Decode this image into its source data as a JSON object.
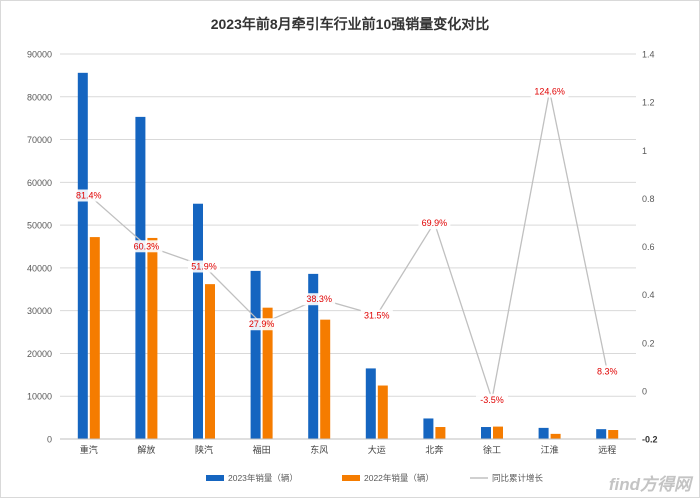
{
  "chart_data": {
    "type": "bar",
    "title": "2023年前8月牵引车行业前10强销量变化对比",
    "categories": [
      "重汽",
      "解放",
      "陕汽",
      "福田",
      "东风",
      "大运",
      "北奔",
      "徐工",
      "江淮",
      "远程"
    ],
    "series": [
      {
        "name": "2023年销量（辆）",
        "type": "bar",
        "axis": "left",
        "color": "#1565c0",
        "values": [
          85600,
          75300,
          55000,
          39300,
          38600,
          16500,
          4800,
          2800,
          2600,
          2300
        ]
      },
      {
        "name": "2022年销量（辆）",
        "type": "bar",
        "axis": "left",
        "color": "#f57c00",
        "values": [
          47200,
          47000,
          36200,
          30700,
          27900,
          12500,
          2800,
          2900,
          1200,
          2100
        ]
      },
      {
        "name": "同比累计增长",
        "type": "line",
        "axis": "right",
        "color": "#c0c0c0",
        "values": [
          0.814,
          0.603,
          0.519,
          0.279,
          0.383,
          0.315,
          0.699,
          -0.035,
          1.246,
          0.083
        ],
        "labels": [
          "81.4%",
          "60.3%",
          "51.9%",
          "27.9%",
          "38.3%",
          "31.5%",
          "69.9%",
          "-3.5%",
          "124.6%",
          "8.3%"
        ]
      }
    ],
    "y_left": {
      "min": 0,
      "max": 90000,
      "ticks": [
        0,
        10000,
        20000,
        30000,
        40000,
        50000,
        60000,
        70000,
        80000,
        90000
      ],
      "tick_labels": [
        "0",
        "10000",
        "20000",
        "30000",
        "40000",
        "50000",
        "60000",
        "70000",
        "80000",
        "90000"
      ]
    },
    "y_right": {
      "min": -0.2,
      "max": 1.4,
      "ticks": [
        -0.2,
        0,
        0.2,
        0.4,
        0.6,
        0.8,
        1,
        1.2,
        1.4
      ],
      "tick_labels": [
        "-0.2",
        "0",
        "0.2",
        "0.4",
        "0.6",
        "0.8",
        "1",
        "1.2",
        "1.4"
      ]
    },
    "grid": true,
    "legend": "bottom-center",
    "label_color": "#e00000"
  },
  "watermark": "find方得网"
}
